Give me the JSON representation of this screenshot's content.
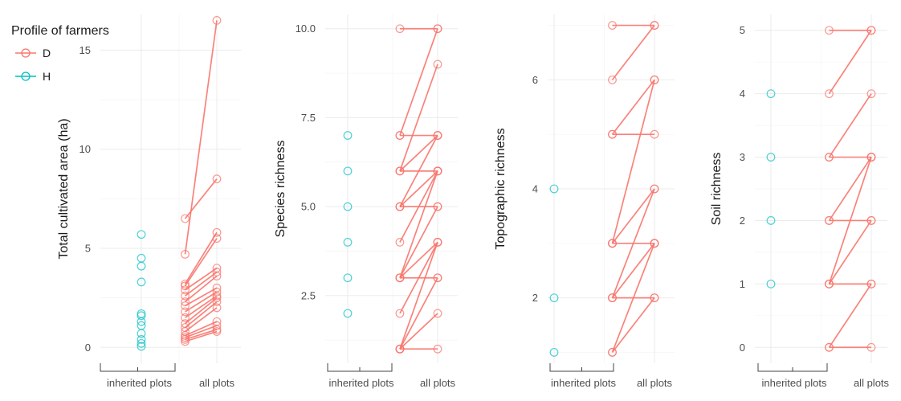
{
  "legend": {
    "title": "Profile of farmers",
    "entries": [
      {
        "label": "D",
        "color": "#F8766D"
      },
      {
        "label": "H",
        "color": "#00BFC4"
      }
    ]
  },
  "chart_data": [
    {
      "type": "scatter",
      "ylabel": "Total cultivated area (ha)",
      "ylim": [
        -0.8,
        16.8
      ],
      "yticks": [
        0,
        5,
        10,
        15
      ],
      "ytick_labels": [
        "0",
        "5",
        "10",
        "15"
      ],
      "x_categories": [
        "inherited plots",
        "all plots"
      ],
      "H_inherited": [
        5.7,
        4.5,
        4.1,
        3.3,
        1.7,
        1.6,
        1.3,
        1.1,
        0.7,
        0.4,
        0.2,
        0.05
      ],
      "D_inherited_only": [],
      "D_pairs": [
        [
          6.5,
          8.5
        ],
        [
          4.7,
          16.5
        ],
        [
          3.2,
          5.8
        ],
        [
          3.1,
          5.5
        ],
        [
          2.9,
          4.0
        ],
        [
          2.6,
          3.8
        ],
        [
          2.3,
          3.6
        ],
        [
          2.1,
          3.0
        ],
        [
          1.8,
          2.8
        ],
        [
          1.5,
          2.6
        ],
        [
          1.2,
          2.5
        ],
        [
          1.0,
          2.3
        ],
        [
          0.8,
          2.0
        ],
        [
          0.6,
          1.3
        ],
        [
          0.5,
          1.1
        ],
        [
          0.4,
          0.9
        ],
        [
          0.3,
          0.8
        ]
      ]
    },
    {
      "type": "scatter",
      "ylabel": "Species richness",
      "ylim": [
        0.6,
        10.4
      ],
      "yticks": [
        2.5,
        5.0,
        7.5,
        10.0
      ],
      "ytick_labels": [
        "2.5",
        "5.0",
        "7.5",
        "10.0"
      ],
      "x_categories": [
        "inherited plots",
        "all plots"
      ],
      "H_inherited": [
        7,
        6,
        5,
        4,
        3,
        2
      ],
      "D_inherited_only": [],
      "D_pairs": [
        [
          10,
          10
        ],
        [
          7,
          10
        ],
        [
          7,
          7
        ],
        [
          6,
          9
        ],
        [
          6,
          7
        ],
        [
          6,
          6
        ],
        [
          5,
          7
        ],
        [
          5,
          6
        ],
        [
          5,
          5
        ],
        [
          4,
          6
        ],
        [
          3,
          6
        ],
        [
          3,
          5
        ],
        [
          3,
          4
        ],
        [
          3,
          3
        ],
        [
          2,
          4
        ],
        [
          1,
          4
        ],
        [
          1,
          3
        ],
        [
          1,
          2
        ],
        [
          1,
          1
        ]
      ]
    },
    {
      "type": "scatter",
      "ylabel": "Topographic richness",
      "ylim": [
        0.8,
        7.2
      ],
      "yticks": [
        2,
        4,
        6
      ],
      "ytick_labels": [
        "2",
        "4",
        "6"
      ],
      "x_categories": [
        "inherited plots",
        "all plots"
      ],
      "H_inherited": [
        4,
        2,
        1
      ],
      "D_inherited_only": [],
      "D_pairs": [
        [
          7,
          7
        ],
        [
          6,
          7
        ],
        [
          5,
          6
        ],
        [
          5,
          5
        ],
        [
          3,
          6
        ],
        [
          3,
          4
        ],
        [
          3,
          3
        ],
        [
          2,
          4
        ],
        [
          2,
          3
        ],
        [
          2,
          2
        ],
        [
          1,
          3
        ],
        [
          1,
          2
        ]
      ]
    },
    {
      "type": "scatter",
      "ylabel": "Soil richness",
      "ylim": [
        -0.25,
        5.25
      ],
      "yticks": [
        0,
        1,
        2,
        3,
        4,
        5
      ],
      "ytick_labels": [
        "0",
        "1",
        "2",
        "3",
        "4",
        "5"
      ],
      "x_categories": [
        "inherited plots",
        "all plots"
      ],
      "H_inherited": [
        4,
        3,
        2,
        1
      ],
      "D_inherited_only": [],
      "D_pairs": [
        [
          5,
          5
        ],
        [
          4,
          5
        ],
        [
          3,
          4
        ],
        [
          3,
          3
        ],
        [
          2,
          3
        ],
        [
          2,
          2
        ],
        [
          1,
          3
        ],
        [
          1,
          2
        ],
        [
          1,
          1
        ],
        [
          0,
          1
        ],
        [
          0,
          0
        ]
      ]
    }
  ]
}
